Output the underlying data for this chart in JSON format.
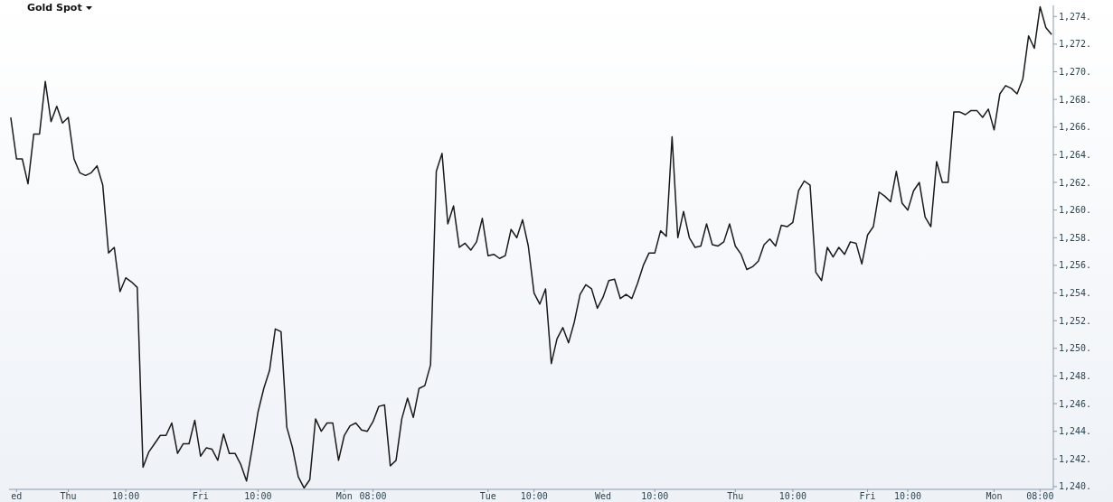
{
  "chart_data": {
    "type": "line",
    "title": "Gold Spot",
    "categories": [
      null,
      "ed",
      null,
      null,
      null,
      null,
      null,
      null,
      null,
      null,
      "Thu",
      null,
      null,
      null,
      null,
      null,
      null,
      null,
      null,
      null,
      "10:00",
      null,
      null,
      null,
      null,
      null,
      null,
      null,
      null,
      null,
      null,
      null,
      null,
      "Fri",
      null,
      null,
      null,
      null,
      null,
      null,
      null,
      null,
      null,
      "10:00",
      null,
      null,
      null,
      null,
      null,
      null,
      null,
      null,
      null,
      null,
      null,
      null,
      null,
      null,
      "Mon",
      null,
      null,
      null,
      null,
      "08:00",
      null,
      null,
      null,
      null,
      null,
      null,
      null,
      null,
      null,
      null,
      null,
      null,
      null,
      null,
      null,
      null,
      null,
      null,
      null,
      "Tue",
      null,
      null,
      null,
      null,
      null,
      null,
      null,
      "10:00",
      null,
      null,
      null,
      null,
      null,
      null,
      null,
      null,
      null,
      null,
      null,
      "Wed",
      null,
      null,
      null,
      null,
      null,
      null,
      null,
      null,
      "10:00",
      null,
      null,
      null,
      null,
      null,
      null,
      null,
      null,
      null,
      null,
      null,
      null,
      null,
      "Thu",
      null,
      null,
      null,
      null,
      null,
      null,
      null,
      null,
      null,
      "10:00",
      null,
      null,
      null,
      null,
      null,
      null,
      null,
      null,
      null,
      null,
      null,
      null,
      "Fri",
      null,
      null,
      null,
      null,
      null,
      null,
      "10:00",
      null,
      null,
      null,
      null,
      null,
      null,
      null,
      null,
      null,
      null,
      null,
      null,
      null,
      null,
      "Mon",
      null,
      null,
      null,
      null,
      null,
      null,
      null,
      "08:00",
      null,
      null
    ],
    "series": [
      {
        "color": "#1a1a1a",
        "values": [
          1266.7,
          1263.7,
          1263.7,
          1261.9,
          1265.5,
          1265.5,
          1269.3,
          1266.4,
          1267.5,
          1266.3,
          1266.7,
          1263.7,
          1262.7,
          1262.5,
          1262.7,
          1263.2,
          1261.8,
          1256.9,
          1257.3,
          1254.1,
          1255.1,
          1254.8,
          1254.4,
          1241.4,
          1242.5,
          1243.1,
          1243.7,
          1243.7,
          1244.6,
          1242.4,
          1243.1,
          1243.1,
          1244.8,
          1242.2,
          1242.8,
          1242.7,
          1241.9,
          1243.8,
          1242.4,
          1242.4,
          1241.6,
          1240.4,
          1242.8,
          1245.4,
          1247.1,
          1248.4,
          1251.4,
          1251.2,
          1244.3,
          1242.8,
          1240.7,
          1239.9,
          1240.5,
          1244.9,
          1244.0,
          1244.6,
          1244.6,
          1241.9,
          1243.7,
          1244.4,
          1244.6,
          1244.1,
          1244.0,
          1244.7,
          1245.8,
          1245.9,
          1241.5,
          1241.9,
          1244.9,
          1246.4,
          1245.0,
          1247.1,
          1247.3,
          1248.8,
          1262.8,
          1264.1,
          1259.0,
          1260.3,
          1257.3,
          1257.6,
          1257.1,
          1257.7,
          1259.4,
          1256.7,
          1256.8,
          1256.5,
          1256.7,
          1258.6,
          1258.0,
          1259.3,
          1257.4,
          1254.0,
          1253.2,
          1254.3,
          1248.9,
          1250.7,
          1251.5,
          1250.4,
          1251.9,
          1253.9,
          1254.6,
          1254.3,
          1252.9,
          1253.7,
          1254.9,
          1255.0,
          1253.6,
          1253.9,
          1253.6,
          1254.7,
          1256.0,
          1256.9,
          1256.9,
          1258.5,
          1258.1,
          1265.3,
          1258.0,
          1259.9,
          1258.0,
          1257.3,
          1257.4,
          1259.0,
          1257.5,
          1257.4,
          1257.7,
          1259.0,
          1257.4,
          1256.8,
          1255.7,
          1255.9,
          1256.3,
          1257.5,
          1257.9,
          1257.4,
          1258.9,
          1258.8,
          1259.1,
          1261.4,
          1262.1,
          1261.8,
          1255.5,
          1254.9,
          1257.3,
          1256.6,
          1257.3,
          1256.8,
          1257.7,
          1257.6,
          1256.1,
          1258.2,
          1258.8,
          1261.3,
          1261.0,
          1260.6,
          1262.8,
          1260.5,
          1260.0,
          1261.4,
          1262.0,
          1259.5,
          1258.8,
          1263.5,
          1262.0,
          1262.0,
          1267.1,
          1267.1,
          1266.9,
          1267.2,
          1267.2,
          1266.7,
          1267.3,
          1265.8,
          1268.4,
          1269.0,
          1268.8,
          1268.4,
          1269.5,
          1272.6,
          1271.7,
          1274.7,
          1273.2,
          1272.7
        ]
      }
    ],
    "ylim": [
      1239.8,
      1274.8
    ],
    "yticks": [
      {
        "value": 1240,
        "label": "1,240."
      },
      {
        "value": 1242,
        "label": "1,242."
      },
      {
        "value": 1244,
        "label": "1,244."
      },
      {
        "value": 1246,
        "label": "1,246."
      },
      {
        "value": 1248,
        "label": "1,248."
      },
      {
        "value": 1250,
        "label": "1,250."
      },
      {
        "value": 1252,
        "label": "1,252."
      },
      {
        "value": 1254,
        "label": "1,254."
      },
      {
        "value": 1256,
        "label": "1,256."
      },
      {
        "value": 1258,
        "label": "1,258."
      },
      {
        "value": 1260,
        "label": "1,260."
      },
      {
        "value": 1262,
        "label": "1,262."
      },
      {
        "value": 1264,
        "label": "1,264."
      },
      {
        "value": 1266,
        "label": "1,266."
      },
      {
        "value": 1268,
        "label": "1,268."
      },
      {
        "value": 1270,
        "label": "1,270."
      },
      {
        "value": 1272,
        "label": "1,272."
      },
      {
        "value": 1274,
        "label": "1,274."
      }
    ],
    "grid": false,
    "legend": false,
    "marker": "none",
    "line_style": "solid"
  }
}
